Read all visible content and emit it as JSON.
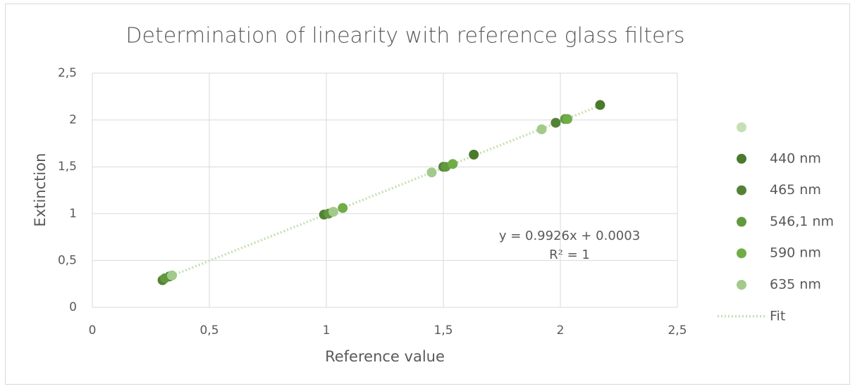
{
  "chart_data": {
    "type": "scatter",
    "title": "Determination of linearity with reference glass filters",
    "x_label": "Reference value",
    "y_label": "Extinction",
    "xlim": [
      0,
      2.5
    ],
    "ylim": [
      0,
      2.5
    ],
    "xticks": [
      0,
      {
        "value": 0.5,
        "label": "0,5"
      },
      1,
      {
        "value": 1.5,
        "label": "1,5"
      },
      2,
      {
        "value": 2.5,
        "label": "2,5"
      }
    ],
    "yticks": [
      0,
      {
        "value": 0.5,
        "label": "0,5"
      },
      1,
      {
        "value": 1.5,
        "label": "1,5"
      },
      2,
      {
        "value": 2.5,
        "label": "2,5"
      }
    ],
    "grid": true,
    "legend": "right",
    "series": [
      {
        "name": null,
        "color": "#c5e0b4",
        "x": [],
        "values": []
      },
      {
        "name": "440 nm",
        "color": "#4a7a2c",
        "x": [
          0.33,
          1.63,
          2.17
        ],
        "values": [
          0.33,
          1.63,
          2.16
        ]
      },
      {
        "name": "465 nm",
        "color": "#548235",
        "x": [
          0.3,
          0.99,
          1.5,
          1.98
        ],
        "values": [
          0.29,
          0.99,
          1.5,
          1.97
        ]
      },
      {
        "name": "546,1 nm",
        "color": "#62993e",
        "x": [
          0.31,
          1.01,
          1.51,
          2.02
        ],
        "values": [
          0.31,
          1.0,
          1.5,
          2.01
        ]
      },
      {
        "name": "590 nm",
        "color": "#70ad47",
        "x": [
          0.34,
          1.07,
          1.54,
          2.03
        ],
        "values": [
          0.34,
          1.06,
          1.53,
          2.01
        ]
      },
      {
        "name": "635 nm",
        "color": "#a2ca8a",
        "x": [
          0.34,
          1.03,
          1.45,
          1.92
        ],
        "values": [
          0.34,
          1.02,
          1.44,
          1.9
        ]
      }
    ],
    "trendline": {
      "name": "Fit",
      "color": "#c5e0b4",
      "slope": 0.9926,
      "intercept": 0.0003,
      "x_range": [
        0.3,
        2.18
      ],
      "equation": "y = 0.9926x + 0.0003",
      "r2": "R² = 1"
    }
  }
}
